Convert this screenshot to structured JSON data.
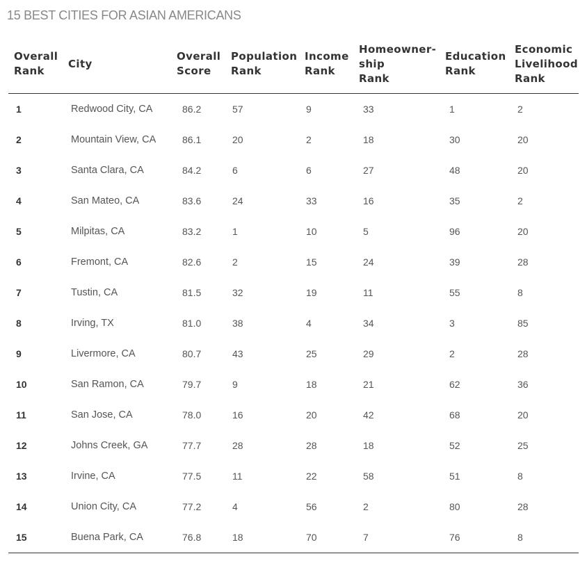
{
  "title": "15 BEST CITIES FOR ASIAN AMERICANS",
  "table": {
    "headers": [
      [
        "Overall",
        "Rank"
      ],
      [
        "City"
      ],
      [
        "Overall",
        "Score"
      ],
      [
        "Population",
        "Rank"
      ],
      [
        "Income",
        "Rank"
      ],
      [
        "Homeowner-",
        "ship",
        "Rank"
      ],
      [
        "Education",
        "Rank"
      ],
      [
        "Economic",
        "Livelihood",
        "Rank"
      ]
    ],
    "rows": [
      [
        "1",
        "Redwood City, CA",
        "86.2",
        "57",
        "9",
        "33",
        "1",
        "2"
      ],
      [
        "2",
        "Mountain View, CA",
        "86.1",
        "20",
        "2",
        "18",
        "30",
        "20"
      ],
      [
        "3",
        "Santa Clara, CA",
        "84.2",
        "6",
        "6",
        "27",
        "48",
        "20"
      ],
      [
        "4",
        "San Mateo, CA",
        "83.6",
        "24",
        "33",
        "16",
        "35",
        "2"
      ],
      [
        "5",
        "Milpitas, CA",
        "83.2",
        "1",
        "10",
        "5",
        "96",
        "20"
      ],
      [
        "6",
        "Fremont, CA",
        "82.6",
        "2",
        "15",
        "24",
        "39",
        "28"
      ],
      [
        "7",
        "Tustin, CA",
        "81.5",
        "32",
        "19",
        "11",
        "55",
        "8"
      ],
      [
        "8",
        "Irving, TX",
        "81.0",
        "38",
        "4",
        "34",
        "3",
        "85"
      ],
      [
        "9",
        "Livermore, CA",
        "80.7",
        "43",
        "25",
        "29",
        "2",
        "28"
      ],
      [
        "10",
        "San Ramon, CA",
        "79.7",
        "9",
        "18",
        "21",
        "62",
        "36"
      ],
      [
        "11",
        "San Jose, CA",
        "78.0",
        "16",
        "20",
        "42",
        "68",
        "20"
      ],
      [
        "12",
        "Johns Creek, GA",
        "77.7",
        "28",
        "28",
        "18",
        "52",
        "25"
      ],
      [
        "13",
        "Irvine, CA",
        "77.5",
        "11",
        "22",
        "58",
        "51",
        "8"
      ],
      [
        "14",
        "Union City, CA",
        "77.2",
        "4",
        "56",
        "2",
        "80",
        "28"
      ],
      [
        "15",
        "Buena Park, CA",
        "76.8",
        "18",
        "70",
        "7",
        "76",
        "8"
      ]
    ]
  }
}
